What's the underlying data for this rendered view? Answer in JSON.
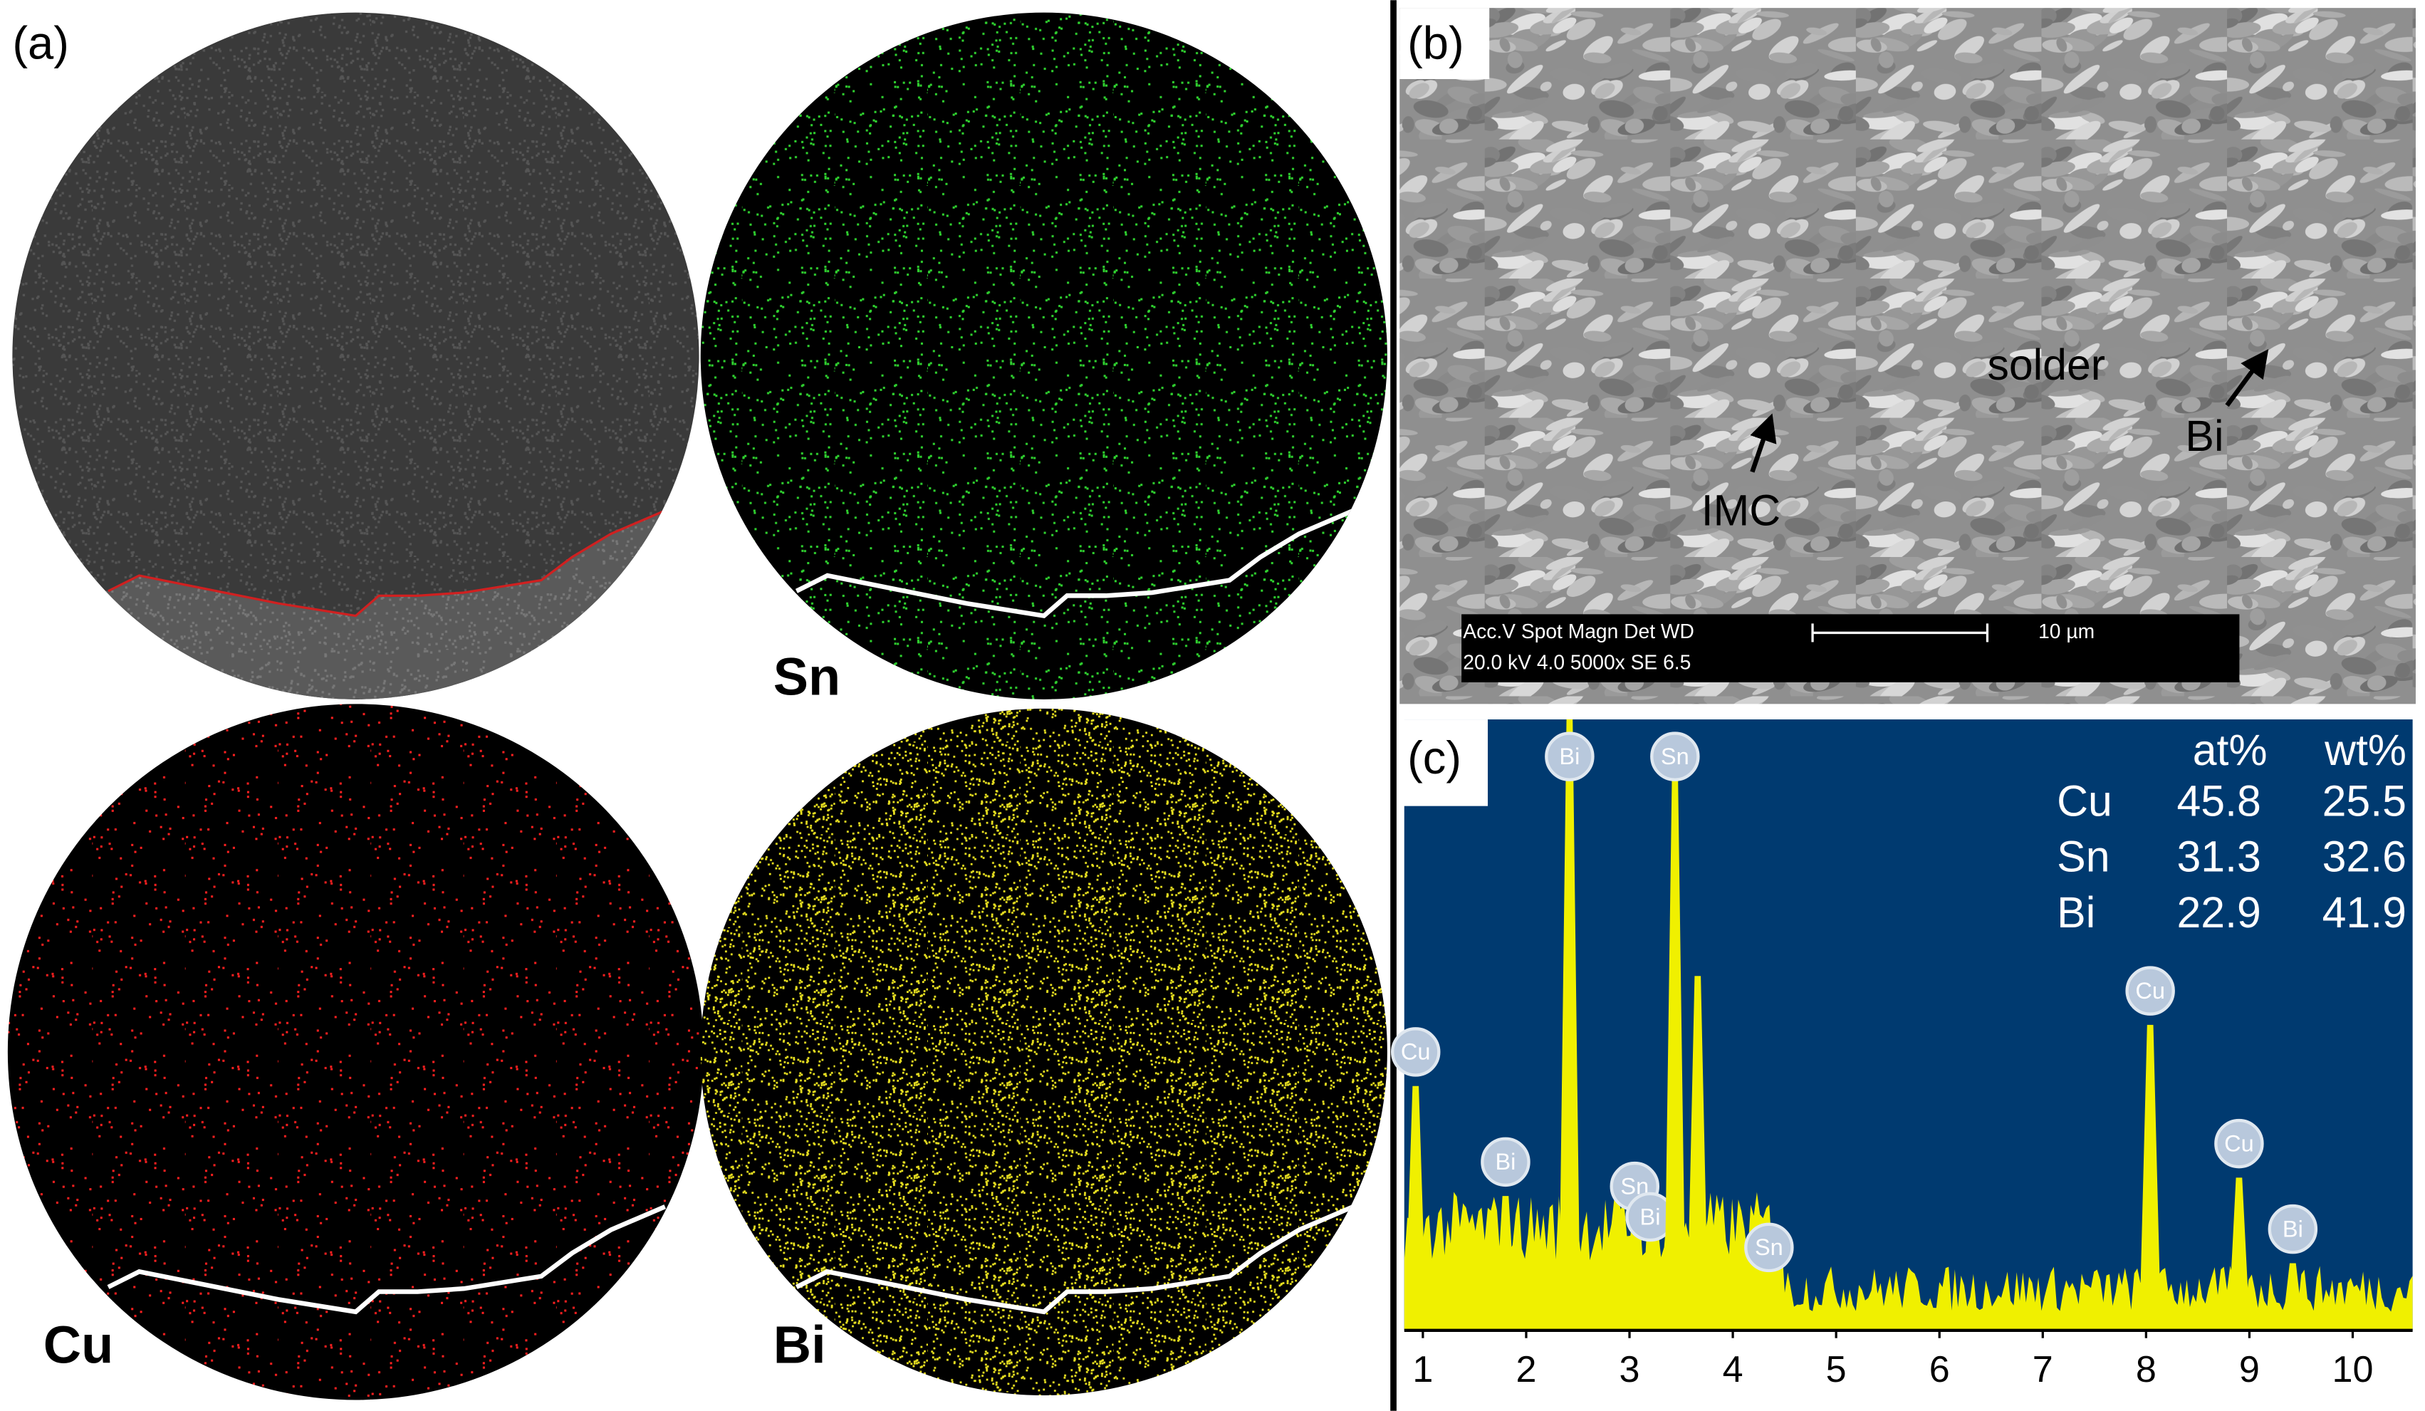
{
  "panel_labels": [
    "(a)",
    "(b)",
    "(c)"
  ],
  "map_labels": [
    "Sn",
    "Cu",
    "Bi"
  ],
  "sem": {
    "annotations": [
      "solder",
      "Bi",
      "IMC"
    ],
    "info_header": "Acc.V  Spot Magn    Det  WD",
    "info_values": "20.0 kV 4.0  5000x    SE   6.5",
    "scale_label": "10 µm"
  },
  "chart_data": {
    "type": "spectrum",
    "xlim": [
      0.82,
      10.58
    ],
    "xticks": [
      1,
      2,
      3,
      4,
      5,
      6,
      7,
      8,
      9,
      10
    ],
    "peaks": [
      {
        "label": "Cu",
        "x": 0.93,
        "height": 40
      },
      {
        "label": "Bi",
        "x": 1.8,
        "height": 22
      },
      {
        "label": "Bi",
        "x": 2.42,
        "height": 100
      },
      {
        "label": "Sn",
        "x": 3.05,
        "height": 18
      },
      {
        "label": "Bi",
        "x": 3.2,
        "height": 13
      },
      {
        "label": "Sn",
        "x": 3.44,
        "height": 90
      },
      {
        "label": null,
        "x": 3.66,
        "height": 58
      },
      {
        "label": "Sn",
        "x": 4.35,
        "height": 8
      },
      {
        "label": "Cu",
        "x": 8.04,
        "height": 50
      },
      {
        "label": "Cu",
        "x": 8.9,
        "height": 25
      },
      {
        "label": "Bi",
        "x": 9.42,
        "height": 11
      }
    ],
    "composition": {
      "columns": [
        "at%",
        "wt%"
      ],
      "rows": [
        [
          "Cu",
          45.8,
          25.5
        ],
        [
          "Sn",
          31.3,
          32.6
        ],
        [
          "Bi",
          22.9,
          41.9
        ]
      ]
    }
  }
}
